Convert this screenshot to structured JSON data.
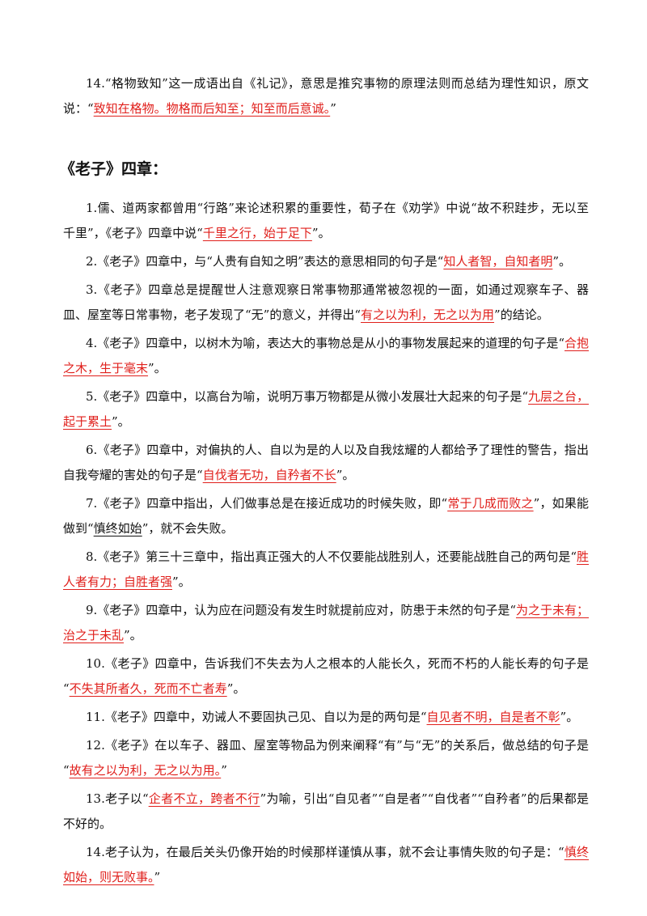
{
  "top_item": {
    "segments": [
      {
        "text": "14.“格物致知”这一成语出自《礼记》，意思是推究事物的原理法则而总结为理性知识，原文说：“"
      },
      {
        "answer": "致知在格物。物格而后知至；知至而后意诚。"
      },
      {
        "text": "”"
      }
    ]
  },
  "section_title": "《老子》四章：",
  "items": [
    {
      "segments": [
        {
          "text": "1.儒、道两家都曾用“行路”来论述积累的重要性，荀子在《劝学》中说“故不积跬步，无以至千里”，《老子》四章中说“"
        },
        {
          "answer": "千里之行，始于足下"
        },
        {
          "text": "”。"
        }
      ]
    },
    {
      "segments": [
        {
          "text": "2.《老子》四章中，与“人贵有自知之明”表达的意思相同的句子是“"
        },
        {
          "answer": "知人者智，自知者明"
        },
        {
          "text": "”。"
        }
      ]
    },
    {
      "segments": [
        {
          "text": "3.《老子》四章总是提醒世人注意观察日常事物那通常被忽视的一面，如通过观察车子、器皿、屋室等日常事物，老子发现了“无”的意义，并得出“"
        },
        {
          "answer": "有之以为利，无之以为用"
        },
        {
          "text": "”的结论。"
        }
      ]
    },
    {
      "segments": [
        {
          "text": "4.《老子》四章中，以树木为喻，表达大的事物总是从小的事物发展起来的道理的句子是“"
        },
        {
          "answer": "合抱之木，生于毫末"
        },
        {
          "text": "”。"
        }
      ]
    },
    {
      "segments": [
        {
          "text": "5.《老子》四章中，以高台为喻，说明万事万物都是从微小发展壮大起来的句子是“"
        },
        {
          "answer": "九层之台，起于累土"
        },
        {
          "text": "”。"
        }
      ]
    },
    {
      "segments": [
        {
          "text": "6.《老子》四章中，对偏执的人、自以为是的人以及自我炫耀的人都给予了理性的警告，指出自我夸耀的害处的句子是“"
        },
        {
          "answer": "自伐者无功，自矜者不长"
        },
        {
          "text": "”。"
        }
      ]
    },
    {
      "segments": [
        {
          "text": "7.《老子》四章中指出，人们做事总是在接近成功的时候失败，即“"
        },
        {
          "answer": "常于几成而败之"
        },
        {
          "text": "”，如果能做到“"
        },
        {
          "underlined": "慎终如始"
        },
        {
          "text": "”，就不会失败。"
        }
      ]
    },
    {
      "segments": [
        {
          "text": "8.《老子》第三十三章中，指出真正强大的人不仅要能战胜别人，还要能战胜自己的两句是“"
        },
        {
          "answer": "胜人者有力；自胜者强"
        },
        {
          "text": "”。"
        }
      ]
    },
    {
      "segments": [
        {
          "text": "9.《老子》四章中，认为应在问题没有发生时就提前应对，防患于未然的句子是“"
        },
        {
          "answer": "为之于未有；治之于未乱"
        },
        {
          "text": "”。"
        }
      ]
    },
    {
      "segments": [
        {
          "text": "10.《老子》四章中，告诉我们不失去为人之根本的人能长久，死而不朽的人能长寿的句子是“"
        },
        {
          "answer": "不失其所者久，死而不亡者寿"
        },
        {
          "text": "”。"
        }
      ]
    },
    {
      "segments": [
        {
          "text": "11.《老子》四章中，劝诫人不要固执己见、自以为是的两句是“"
        },
        {
          "answer": "自见者不明，自是者不彰"
        },
        {
          "text": "”。"
        }
      ]
    },
    {
      "segments": [
        {
          "text": "12.《老子》在以车子、器皿、屋室等物品为例来阐释“有”与“无”的关系后，做总结的句子是“"
        },
        {
          "answer": "故有之以为利，无之以为用。"
        },
        {
          "text": "”"
        }
      ]
    },
    {
      "segments": [
        {
          "text": "13.老子以“"
        },
        {
          "answer": "企者不立，跨者不行"
        },
        {
          "text": "”为喻，引出“自见者”“自是者”“自伐者”“自矜者”的后果都是不好的。"
        }
      ]
    },
    {
      "segments": [
        {
          "text": "14.老子认为，在最后关头仍像开始的时候那样谨慎从事，就不会让事情失败的句子是：“"
        },
        {
          "answer": "慎终如始，则无败事。"
        },
        {
          "text": "”"
        }
      ]
    }
  ]
}
